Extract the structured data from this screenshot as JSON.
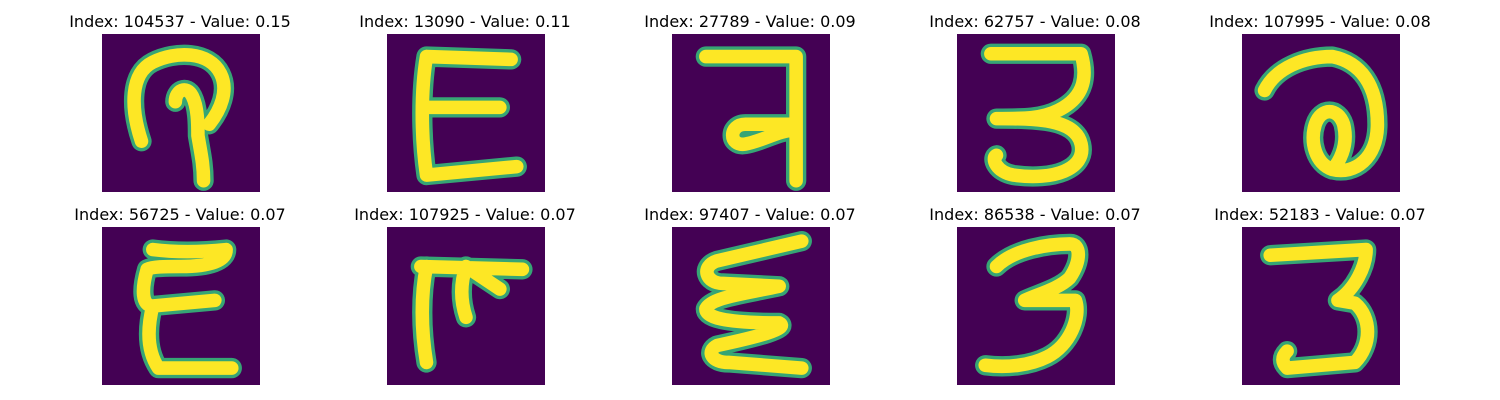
{
  "background_color": "#440154",
  "stroke_color": "#fde725",
  "edge_color": "#35b779",
  "panels": [
    {
      "title": "Index: 104537 - Value: 0.15"
    },
    {
      "title": "Index: 13090 - Value: 0.11"
    },
    {
      "title": "Index: 27789 - Value: 0.09"
    },
    {
      "title": "Index: 62757 - Value: 0.08"
    },
    {
      "title": "Index: 107995 - Value: 0.08"
    },
    {
      "title": "Index: 56725 - Value: 0.07"
    },
    {
      "title": "Index: 107925 - Value: 0.07"
    },
    {
      "title": "Index: 97407 - Value: 0.07"
    },
    {
      "title": "Index: 86538 - Value: 0.07"
    },
    {
      "title": "Index: 52183 - Value: 0.07"
    }
  ]
}
